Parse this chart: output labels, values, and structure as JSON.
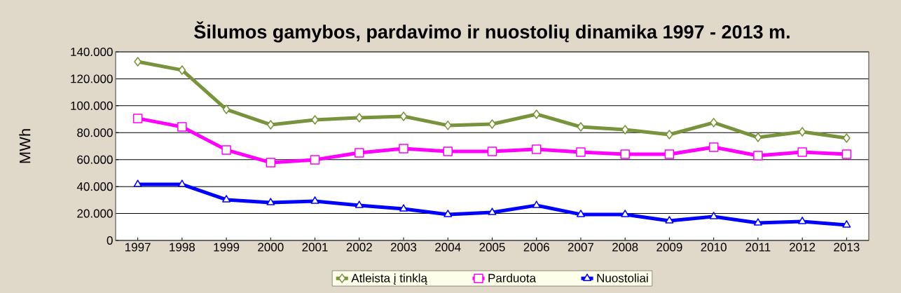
{
  "chart_data": {
    "type": "line",
    "title": "Šilumos gamybos, pardavimo ir nuostolių dinamika 1997 - 2013 m.",
    "ylabel": "MWh",
    "categories": [
      "1997",
      "1998",
      "1999",
      "2000",
      "2001",
      "2002",
      "2003",
      "2004",
      "2005",
      "2006",
      "2007",
      "2008",
      "2009",
      "2010",
      "2011",
      "2012",
      "2013"
    ],
    "series": [
      {
        "name": "Atleista į tinklą",
        "color": "#77933c",
        "marker": "diamond",
        "values": [
          132700,
          126500,
          97300,
          85900,
          89500,
          91100,
          92100,
          85400,
          86400,
          93700,
          84300,
          82200,
          78600,
          87500,
          76500,
          80700,
          76000
        ]
      },
      {
        "name": "Parduota",
        "color": "#ff00ff",
        "marker": "square",
        "values": [
          90600,
          84300,
          67200,
          57800,
          59900,
          65100,
          68200,
          66100,
          66100,
          67700,
          65600,
          64000,
          64000,
          69200,
          63000,
          65600,
          64000
        ]
      },
      {
        "name": "Nuostoliai",
        "color": "#0000ff",
        "marker": "triangle",
        "values": [
          41600,
          41600,
          30200,
          28100,
          29200,
          26000,
          23400,
          19300,
          20800,
          26000,
          19300,
          19300,
          14600,
          17700,
          13000,
          14100,
          11500
        ]
      }
    ],
    "ylim": [
      0,
      140000
    ],
    "yticks": [
      {
        "value": 0,
        "label": "0"
      },
      {
        "value": 20000,
        "label": "20.000"
      },
      {
        "value": 40000,
        "label": "40.000"
      },
      {
        "value": 60000,
        "label": "60.000"
      },
      {
        "value": 80000,
        "label": "80.000"
      },
      {
        "value": 100000,
        "label": "100.000"
      },
      {
        "value": 120000,
        "label": "120.000"
      },
      {
        "value": 140000,
        "label": "140.000"
      }
    ],
    "grid": "y",
    "legend": "bottom",
    "line_style": "solid"
  }
}
